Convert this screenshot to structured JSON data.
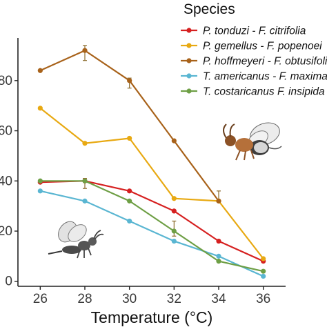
{
  "chart_data": {
    "type": "line",
    "xlabel": "Temperature (°C)",
    "x": [
      26,
      28,
      30,
      32,
      34,
      36
    ],
    "x_ticks": [
      "26",
      "28",
      "30",
      "32",
      "34",
      "36"
    ],
    "y_ticks": [
      "0",
      "20",
      "40",
      "60",
      "80"
    ],
    "y_tick_values": [
      0,
      20,
      40,
      60,
      80
    ],
    "y_tick_display": [
      "0",
      "20",
      "40",
      "60",
      "80"
    ],
    "ylim": [
      -2,
      97
    ],
    "xlim": [
      25,
      37
    ],
    "legend_title": "Species",
    "legend_position": "top-right",
    "grid": false,
    "series": [
      {
        "name": "P. tonduzi - F. citrifolia",
        "color": "#d62020",
        "values": [
          39.5,
          40,
          36,
          28,
          16,
          8
        ]
      },
      {
        "name": "P. gemellus - F. popenoei",
        "color": "#e8a912",
        "values": [
          69,
          55,
          57,
          33,
          32,
          9
        ]
      },
      {
        "name": "P. hoffmeyeri - F. obtusifolia",
        "color": "#a8621a",
        "values": [
          84,
          92,
          80,
          56,
          32,
          null
        ]
      },
      {
        "name": "T. americanus - F. maxima",
        "color": "#5ab6d2",
        "values": [
          36,
          32,
          24,
          16,
          10,
          2
        ]
      },
      {
        "name": "T. costaricanus F. insipida",
        "color": "#6e9f45",
        "values": [
          40,
          40,
          32,
          20,
          8,
          4
        ]
      }
    ],
    "error_bar_color": "#8a6a2a"
  },
  "colors": {
    "axis": "#222222",
    "wasp_body": "#4a4a4a",
    "wasp_body_orange": "#b5703a",
    "wing": "#e6e6e6"
  },
  "icons": [
    "fig-wasp-icon",
    "nonpollinating-wasp-icon"
  ]
}
